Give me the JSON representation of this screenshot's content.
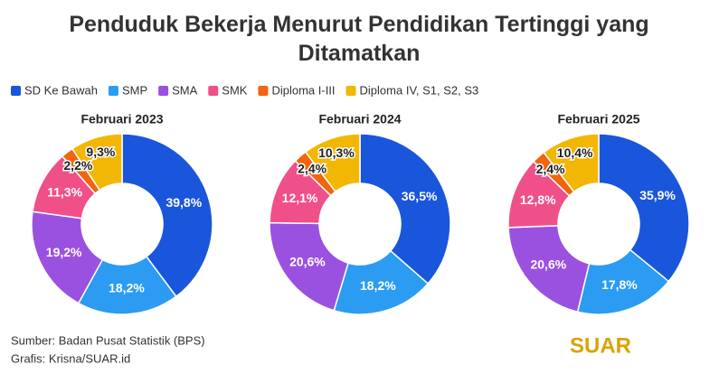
{
  "title": "Penduduk Bekerja Menurut Pendidikan Tertinggi yang Ditamatkan",
  "categories": [
    "SD Ke Bawah",
    "SMP",
    "SMA",
    "SMK",
    "Diploma I-III",
    "Diploma IV, S1, S2, S3"
  ],
  "colors": [
    "#1a56db",
    "#2b9cf2",
    "#9b51e0",
    "#f0508a",
    "#f2650f",
    "#f2b705"
  ],
  "chart_data": [
    {
      "type": "pie",
      "title": "Februari 2023",
      "values": [
        39.8,
        18.2,
        19.2,
        11.3,
        2.2,
        9.3
      ],
      "value_labels": [
        "39,8%",
        "18,2%",
        "19,2%",
        "11,3%",
        "2,2%",
        "9,3%"
      ]
    },
    {
      "type": "pie",
      "title": "Februari 2024",
      "values": [
        36.5,
        18.2,
        20.6,
        12.1,
        2.4,
        10.3
      ],
      "value_labels": [
        "36,5%",
        "18,2%",
        "20,6%",
        "12,1%",
        "2,4%",
        "10,3%"
      ]
    },
    {
      "type": "pie",
      "title": "Februari 2025",
      "values": [
        35.9,
        17.8,
        20.6,
        12.8,
        2.4,
        10.4
      ],
      "value_labels": [
        "35,9%",
        "17,8%",
        "20,6%",
        "12,8%",
        "2,4%",
        "10,4%"
      ]
    }
  ],
  "source": "Sumber: Badan Pusat Statistik (BPS)",
  "credit": "Grafis: Krisna/SUAR.id",
  "logo": "SUAR"
}
